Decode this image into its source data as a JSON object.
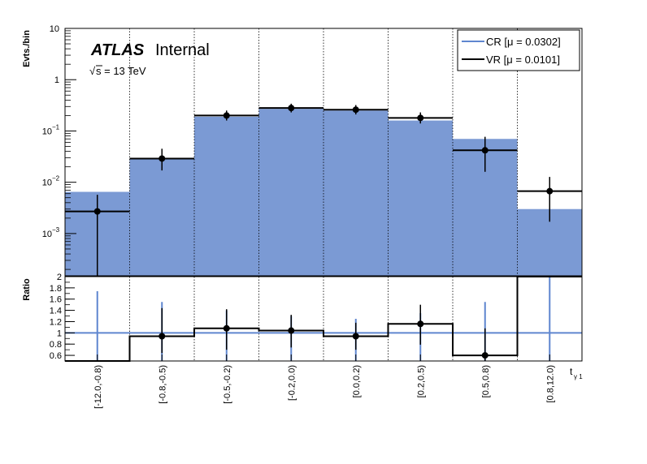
{
  "chart_data": {
    "type": "histogram",
    "experiment": "ATLAS",
    "status": "Internal",
    "energy_label": "√s = 13 TeV",
    "sqrt_symbol": "√",
    "energy_text": "s = 13 TeV",
    "xlabel": "t",
    "xlabel_sub": "γ 1",
    "ylabel_top": "Evts./bin",
    "ylabel_bottom": "Ratio",
    "y_scale": "log",
    "ylim_top": [
      0.00015,
      10
    ],
    "ylim_bottom": [
      0.5,
      2
    ],
    "ratio_reference": 1,
    "yticks_top": [
      {
        "value": 0.001,
        "base": "10",
        "exp": "−3"
      },
      {
        "value": 0.01,
        "base": "10",
        "exp": "−2"
      },
      {
        "value": 0.1,
        "base": "10",
        "exp": "−1"
      },
      {
        "value": 1,
        "base": "1",
        "exp": ""
      },
      {
        "value": 10,
        "base": "10",
        "exp": ""
      }
    ],
    "yticks_bottom": [
      "0.6",
      "0.8",
      "1",
      "1.2",
      "1.4",
      "1.6",
      "1.8",
      "2"
    ],
    "categories": [
      "[-12.0,-0.8)",
      "[-0.8,-0.5)",
      "[-0.5,-0.2)",
      "[-0.2,0.0)",
      "[0.0,0.2)",
      "[0.2,0.5)",
      "[0.5,0.8)",
      "[0.8,12.0)"
    ],
    "legend_placement": "top-right",
    "series": [
      {
        "name": "CR [μ = 0.0302]",
        "style": "filled",
        "color": "#7b9ad4",
        "values": [
          0.0065,
          0.028,
          0.19,
          0.27,
          0.25,
          0.16,
          0.07,
          0.003
        ]
      },
      {
        "name": "VR [μ = 0.0101]",
        "style": "points",
        "color": "#000000",
        "values": [
          0.0027,
          0.029,
          0.2,
          0.28,
          0.26,
          0.18,
          0.042,
          0.0067
        ],
        "err_lo": [
          0.00255,
          0.012,
          0.04,
          0.05,
          0.05,
          0.04,
          0.026,
          0.005
        ],
        "err_hi": [
          0.003,
          0.016,
          0.05,
          0.06,
          0.06,
          0.05,
          0.035,
          0.006
        ]
      }
    ],
    "ratio": {
      "values": [
        0.0,
        0.94,
        1.08,
        1.04,
        0.94,
        1.16,
        0.6,
        2.5
      ],
      "err_lo": [
        0,
        0.3,
        0.38,
        0.3,
        0.24,
        0.37,
        0.6,
        0
      ],
      "err_hi": [
        0,
        0.5,
        0.34,
        0.28,
        0.24,
        0.34,
        0.48,
        0
      ],
      "cr_band_lo": [
        0.5,
        0.5,
        0.5,
        0.5,
        0.5,
        0.5,
        0.5,
        0.5
      ],
      "cr_band_hi": [
        1.74,
        1.55,
        1.4,
        1.3,
        1.25,
        1.35,
        1.55,
        2.0
      ]
    },
    "colors": {
      "cr_fill": "#7b9ad4",
      "cr_line": "#5f86cf",
      "vr": "#000000",
      "grid": "#000000"
    }
  }
}
